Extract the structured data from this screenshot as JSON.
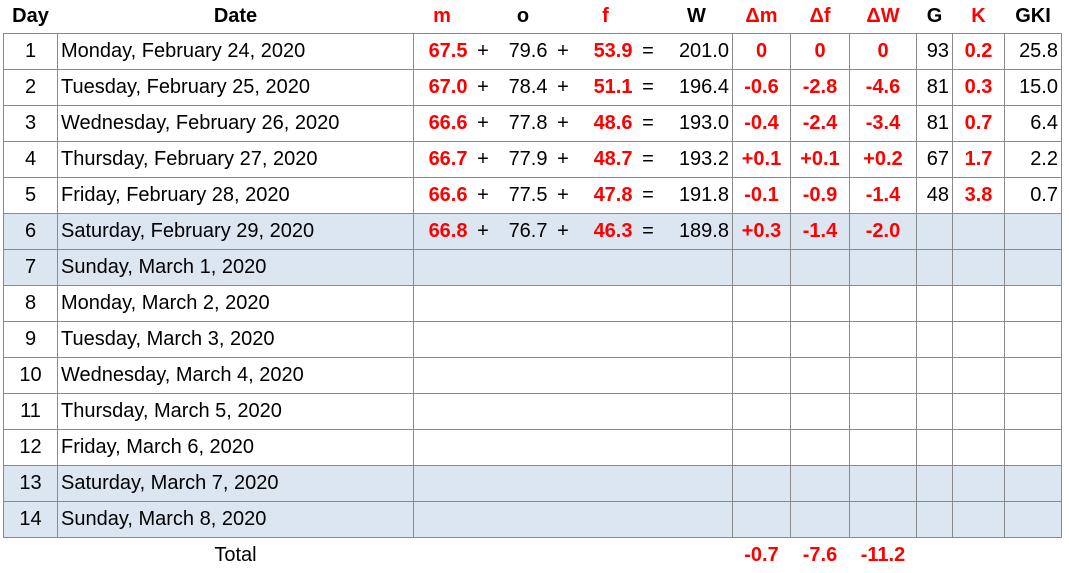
{
  "header": [
    "Day",
    "Date",
    "m",
    "o",
    "f",
    "W",
    "Δm",
    "Δf",
    "ΔW",
    "G",
    "K",
    "GKI"
  ],
  "rows": [
    {
      "cells": [
        "1",
        "Monday, February 24, 2020",
        "67.5",
        "+",
        "79.6",
        "+",
        "53.9",
        "=",
        "201.0",
        "0",
        "0",
        "0",
        "93",
        "0.2",
        "25.8"
      ],
      "shaded": false
    },
    {
      "cells": [
        "2",
        "Tuesday, February 25, 2020",
        "67.0",
        "+",
        "78.4",
        "+",
        "51.1",
        "=",
        "196.4",
        "-0.6",
        "-2.8",
        "-4.6",
        "81",
        "0.3",
        "15.0"
      ],
      "shaded": false
    },
    {
      "cells": [
        "3",
        "Wednesday, February 26, 2020",
        "66.6",
        "+",
        "77.8",
        "+",
        "48.6",
        "=",
        "193.0",
        "-0.4",
        "-2.4",
        "-3.4",
        "81",
        "0.7",
        "6.4"
      ],
      "shaded": false
    },
    {
      "cells": [
        "4",
        "Thursday, February 27, 2020",
        "66.7",
        "+",
        "77.9",
        "+",
        "48.7",
        "=",
        "193.2",
        "+0.1",
        "+0.1",
        "+0.2",
        "67",
        "1.7",
        "2.2"
      ],
      "shaded": false
    },
    {
      "cells": [
        "5",
        "Friday, February 28, 2020",
        "66.6",
        "+",
        "77.5",
        "+",
        "47.8",
        "=",
        "191.8",
        "-0.1",
        "-0.9",
        "-1.4",
        "48",
        "3.8",
        "0.7"
      ],
      "shaded": false
    },
    {
      "cells": [
        "6",
        "Saturday, February 29, 2020",
        "66.8",
        "+",
        "76.7",
        "+",
        "46.3",
        "=",
        "189.8",
        "+0.3",
        "-1.4",
        "-2.0"
      ],
      "shaded": true
    },
    {
      "cells": [
        "7",
        "Sunday, March 1, 2020"
      ],
      "shaded": true
    },
    {
      "cells": [
        "8",
        "Monday, March 2, 2020"
      ],
      "shaded": false
    },
    {
      "cells": [
        "9",
        "Tuesday, March 3, 2020"
      ],
      "shaded": false
    },
    {
      "cells": [
        "10",
        "Wednesday, March 4, 2020"
      ],
      "shaded": false
    },
    {
      "cells": [
        "11",
        "Thursday, March 5, 2020"
      ],
      "shaded": false
    },
    {
      "cells": [
        "12",
        "Friday, March 6, 2020"
      ],
      "shaded": false
    },
    {
      "cells": [
        "13",
        "Saturday, March 7, 2020"
      ],
      "shaded": true
    },
    {
      "cells": [
        "14",
        "Sunday, March 8, 2020"
      ],
      "shaded": true
    }
  ],
  "total": {
    "label": "Total",
    "values": [
      "-0.7",
      "-7.6",
      "-11.2"
    ]
  }
}
